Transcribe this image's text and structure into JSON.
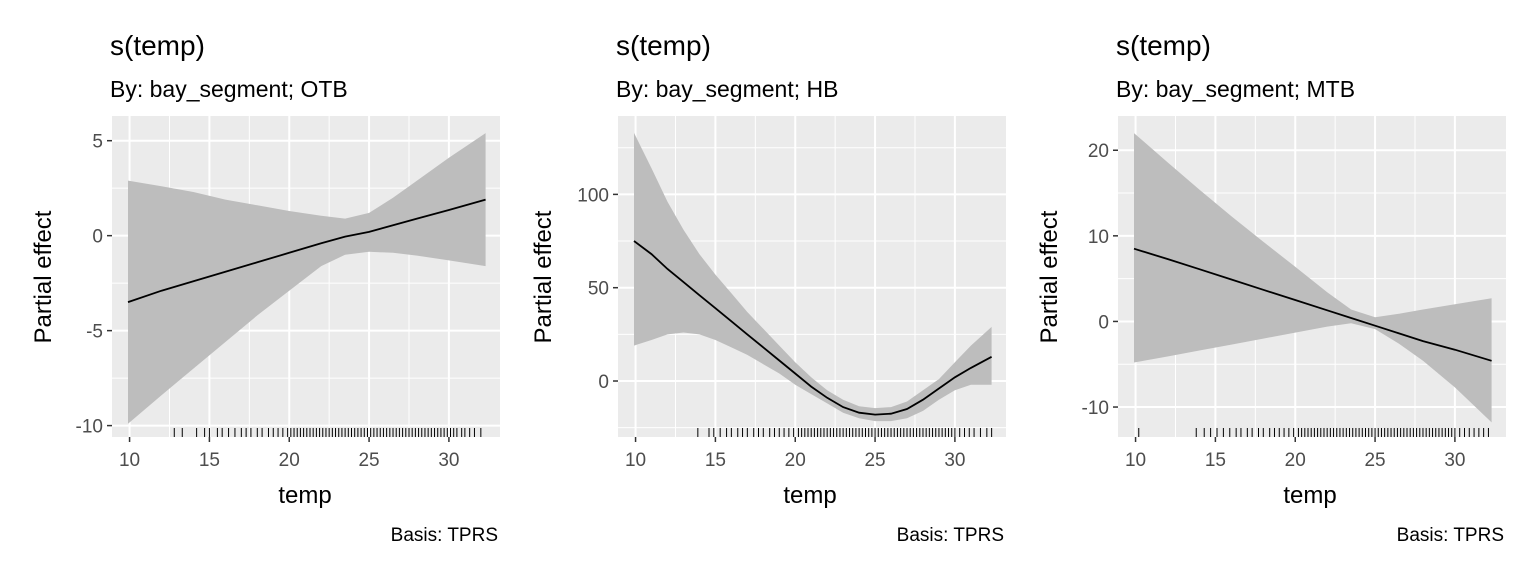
{
  "chart_data": [
    {
      "type": "line",
      "title": "s(temp)",
      "subtitle": "By: bay_segment; OTB",
      "xlabel": "temp",
      "ylabel": "Partial effect",
      "caption": "Basis: TPRS",
      "xlim": [
        8.9,
        33.2
      ],
      "ylim": [
        -10.6,
        6.3
      ],
      "xticks": [
        10,
        15,
        20,
        25,
        30
      ],
      "yticks": [
        -10,
        -5,
        0,
        5
      ],
      "series": [
        {
          "x": [
            9.9,
            12,
            14,
            16,
            18,
            20,
            22,
            23.5,
            25,
            26.5,
            28,
            30,
            32.3
          ],
          "y": [
            -3.5,
            -2.9,
            -2.4,
            -1.9,
            -1.4,
            -0.9,
            -0.4,
            -0.05,
            0.2,
            0.55,
            0.9,
            1.35,
            1.9
          ],
          "lower": [
            -9.9,
            -8.4,
            -7.0,
            -5.6,
            -4.2,
            -2.9,
            -1.6,
            -1.0,
            -0.85,
            -0.9,
            -1.05,
            -1.3,
            -1.6
          ],
          "upper": [
            2.9,
            2.6,
            2.3,
            1.9,
            1.6,
            1.3,
            1.05,
            0.9,
            1.2,
            2.0,
            2.9,
            4.1,
            5.4
          ]
        }
      ],
      "rug": [
        12.8,
        13.3,
        14.2,
        14.7,
        15.0,
        15.5,
        15.8,
        16.2,
        16.6,
        17.0,
        17.3,
        17.6,
        18.0,
        18.3,
        18.7,
        19.0,
        19.3,
        19.6,
        19.9,
        20.1,
        20.3,
        20.5,
        20.7,
        20.9,
        21.1,
        21.3,
        21.5,
        21.7,
        21.9,
        22.1,
        22.3,
        22.5,
        22.7,
        22.9,
        23.1,
        23.3,
        23.5,
        23.7,
        23.9,
        24.1,
        24.3,
        24.5,
        24.7,
        24.9,
        25.1,
        25.3,
        25.5,
        25.7,
        25.9,
        26.1,
        26.3,
        26.5,
        26.7,
        26.9,
        27.1,
        27.3,
        27.5,
        27.7,
        27.9,
        28.1,
        28.3,
        28.5,
        28.7,
        28.9,
        29.1,
        29.3,
        29.5,
        29.7,
        29.9,
        30.1,
        30.3,
        30.5,
        30.8,
        31.0,
        31.3,
        31.6,
        32.0
      ]
    },
    {
      "type": "line",
      "title": "s(temp)",
      "subtitle": "By: bay_segment; HB",
      "xlabel": "temp",
      "ylabel": "Partial effect",
      "caption": "Basis: TPRS",
      "xlim": [
        8.9,
        33.2
      ],
      "ylim": [
        -30,
        142
      ],
      "xticks": [
        10,
        15,
        20,
        25,
        30
      ],
      "yticks": [
        0,
        50,
        100
      ],
      "series": [
        {
          "x": [
            9.9,
            11,
            12,
            13,
            14,
            15,
            16,
            17,
            18,
            19,
            20,
            21,
            22,
            23,
            24,
            25,
            26,
            27,
            28,
            29,
            30,
            31,
            32.3
          ],
          "y": [
            75,
            68,
            60,
            53,
            46,
            39,
            32,
            25,
            18,
            11,
            4,
            -3,
            -9,
            -14,
            -17,
            -18,
            -17.5,
            -15,
            -10,
            -4,
            2,
            7,
            13
          ],
          "lower": [
            19,
            22,
            25,
            26,
            25,
            22,
            18,
            14,
            9,
            4,
            -2,
            -7,
            -12,
            -17,
            -20,
            -21.5,
            -21.5,
            -20,
            -16,
            -10,
            -5,
            -2,
            -2
          ],
          "upper": [
            133,
            114,
            96,
            81,
            68,
            57,
            47,
            37,
            28,
            19,
            10,
            2,
            -5,
            -10,
            -13.5,
            -14.5,
            -14,
            -11,
            -5,
            1,
            10,
            19,
            29
          ]
        }
      ],
      "rug": [
        13.9,
        14.6,
        14.9,
        15.3,
        15.7,
        16.0,
        16.4,
        16.7,
        17.0,
        17.4,
        17.7,
        18.0,
        18.4,
        18.7,
        19.0,
        19.3,
        19.6,
        19.9,
        20.2,
        20.4,
        20.6,
        20.8,
        21.0,
        21.2,
        21.4,
        21.6,
        21.8,
        22.0,
        22.2,
        22.4,
        22.6,
        22.8,
        23.0,
        23.2,
        23.4,
        23.6,
        23.8,
        24.0,
        24.2,
        24.4,
        24.6,
        24.8,
        25.0,
        25.2,
        25.4,
        25.6,
        25.8,
        26.0,
        26.2,
        26.4,
        26.6,
        26.8,
        27.0,
        27.2,
        27.4,
        27.6,
        27.8,
        28.0,
        28.2,
        28.4,
        28.6,
        28.8,
        29.0,
        29.2,
        29.4,
        29.6,
        29.8,
        30.0,
        30.3,
        30.6,
        30.9,
        31.2,
        31.6,
        32.0,
        32.3
      ]
    },
    {
      "type": "line",
      "title": "s(temp)",
      "subtitle": "By: bay_segment; MTB",
      "xlabel": "temp",
      "ylabel": "Partial effect",
      "caption": "Basis: TPRS",
      "xlim": [
        8.9,
        33.2
      ],
      "ylim": [
        -13.5,
        24
      ],
      "xticks": [
        10,
        15,
        20,
        25,
        30
      ],
      "yticks": [
        -10,
        0,
        10,
        20
      ],
      "series": [
        {
          "x": [
            9.9,
            12,
            14,
            16,
            18,
            20,
            22,
            23.5,
            25,
            26.5,
            28,
            30,
            32.3
          ],
          "y": [
            8.5,
            7.3,
            6.1,
            4.9,
            3.7,
            2.5,
            1.3,
            0.4,
            -0.5,
            -1.4,
            -2.3,
            -3.3,
            -4.6
          ],
          "lower": [
            -4.8,
            -4.1,
            -3.4,
            -2.7,
            -2.0,
            -1.3,
            -0.6,
            -0.2,
            -0.9,
            -2.6,
            -4.6,
            -7.7,
            -11.8
          ],
          "upper": [
            22.0,
            18.6,
            15.4,
            12.3,
            9.3,
            6.4,
            3.4,
            1.4,
            0.5,
            0.9,
            1.4,
            2.0,
            2.7
          ]
        }
      ],
      "rug": [
        10.2,
        13.8,
        14.3,
        14.7,
        15.1,
        15.5,
        15.9,
        16.3,
        16.6,
        17.0,
        17.3,
        17.7,
        18.0,
        18.4,
        18.7,
        19.0,
        19.3,
        19.6,
        19.9,
        20.2,
        20.4,
        20.6,
        20.8,
        21.0,
        21.2,
        21.4,
        21.6,
        21.8,
        22.0,
        22.2,
        22.4,
        22.6,
        22.8,
        23.0,
        23.2,
        23.4,
        23.6,
        23.8,
        24.0,
        24.2,
        24.4,
        24.6,
        24.8,
        25.0,
        25.2,
        25.4,
        25.6,
        25.8,
        26.0,
        26.2,
        26.4,
        26.6,
        26.8,
        27.0,
        27.2,
        27.4,
        27.6,
        27.8,
        28.0,
        28.2,
        28.4,
        28.6,
        28.8,
        29.0,
        29.2,
        29.4,
        29.6,
        29.8,
        30.0,
        30.3,
        30.6,
        30.9,
        31.2,
        31.5,
        31.8,
        32.1
      ]
    }
  ],
  "colors": {
    "panel_bg": "#ebebeb",
    "grid": "#ffffff",
    "ribbon": "#bdbdbd",
    "line": "#000000"
  }
}
